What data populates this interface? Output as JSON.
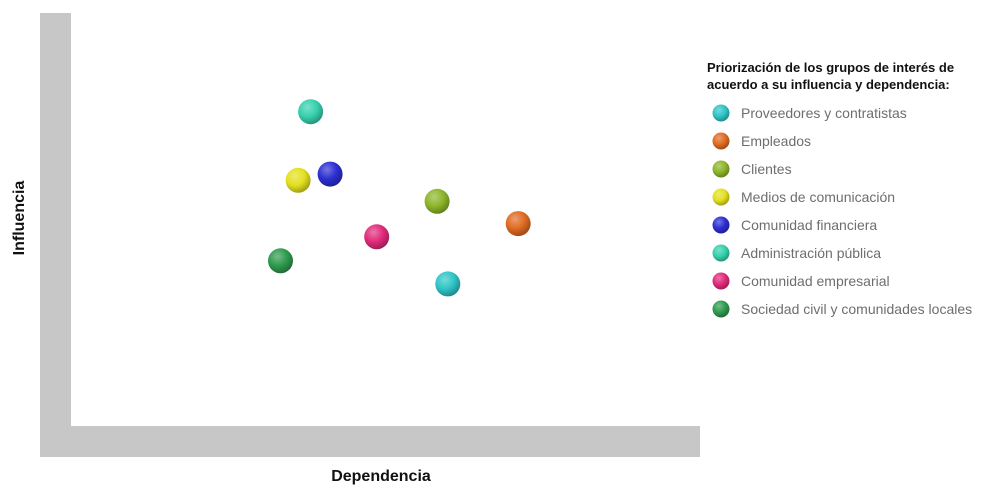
{
  "chart_data": {
    "type": "scatter",
    "title": "",
    "xlabel": "Dependencia",
    "ylabel": "Influencia",
    "xlim": [
      0,
      100
    ],
    "ylim": [
      0,
      100
    ],
    "grid": false,
    "legend_title": [
      "Priorización de los grupos de interés de",
      "acuerdo a su influencia y dependencia:"
    ],
    "legend_position": "right",
    "series": [
      {
        "name": "Proveedores y contratistas",
        "color": "#2ec4c6",
        "x": 59.9,
        "y": 34.4
      },
      {
        "name": "Empleados",
        "color": "#e06a22",
        "x": 71.1,
        "y": 49.0
      },
      {
        "name": "Clientes",
        "color": "#8db52a",
        "x": 58.2,
        "y": 54.4
      },
      {
        "name": "Medios de comunicación",
        "color": "#e3e01e",
        "x": 36.1,
        "y": 59.5
      },
      {
        "name": "Comunidad financiera",
        "color": "#2c2ed1",
        "x": 41.2,
        "y": 61.0
      },
      {
        "name": "Administración pública",
        "color": "#35d0ad",
        "x": 38.1,
        "y": 76.1
      },
      {
        "name": "Comunidad empresarial",
        "color": "#e02a7b",
        "x": 48.6,
        "y": 45.8
      },
      {
        "name": "Sociedad civil y comunidades locales",
        "color": "#2e9a4e",
        "x": 33.3,
        "y": 40.0
      }
    ]
  }
}
